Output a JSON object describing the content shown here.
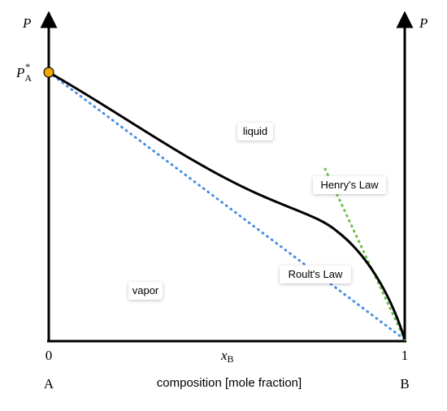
{
  "axes": {
    "left_label": "P",
    "right_label": "P",
    "pure_pressure": {
      "symbol": "P",
      "superscript": "*",
      "subscript": "A"
    }
  },
  "regions": {
    "liquid": "liquid",
    "vapor": "vapor"
  },
  "laws": {
    "henry": "Henry's Law",
    "raoult": "Roult's Law"
  },
  "x_axis": {
    "start": "0",
    "end": "1",
    "variable": {
      "symbol": "x",
      "subscript": "B"
    },
    "title": "composition [mole fraction]",
    "left_component": "A",
    "right_component": "B"
  }
}
